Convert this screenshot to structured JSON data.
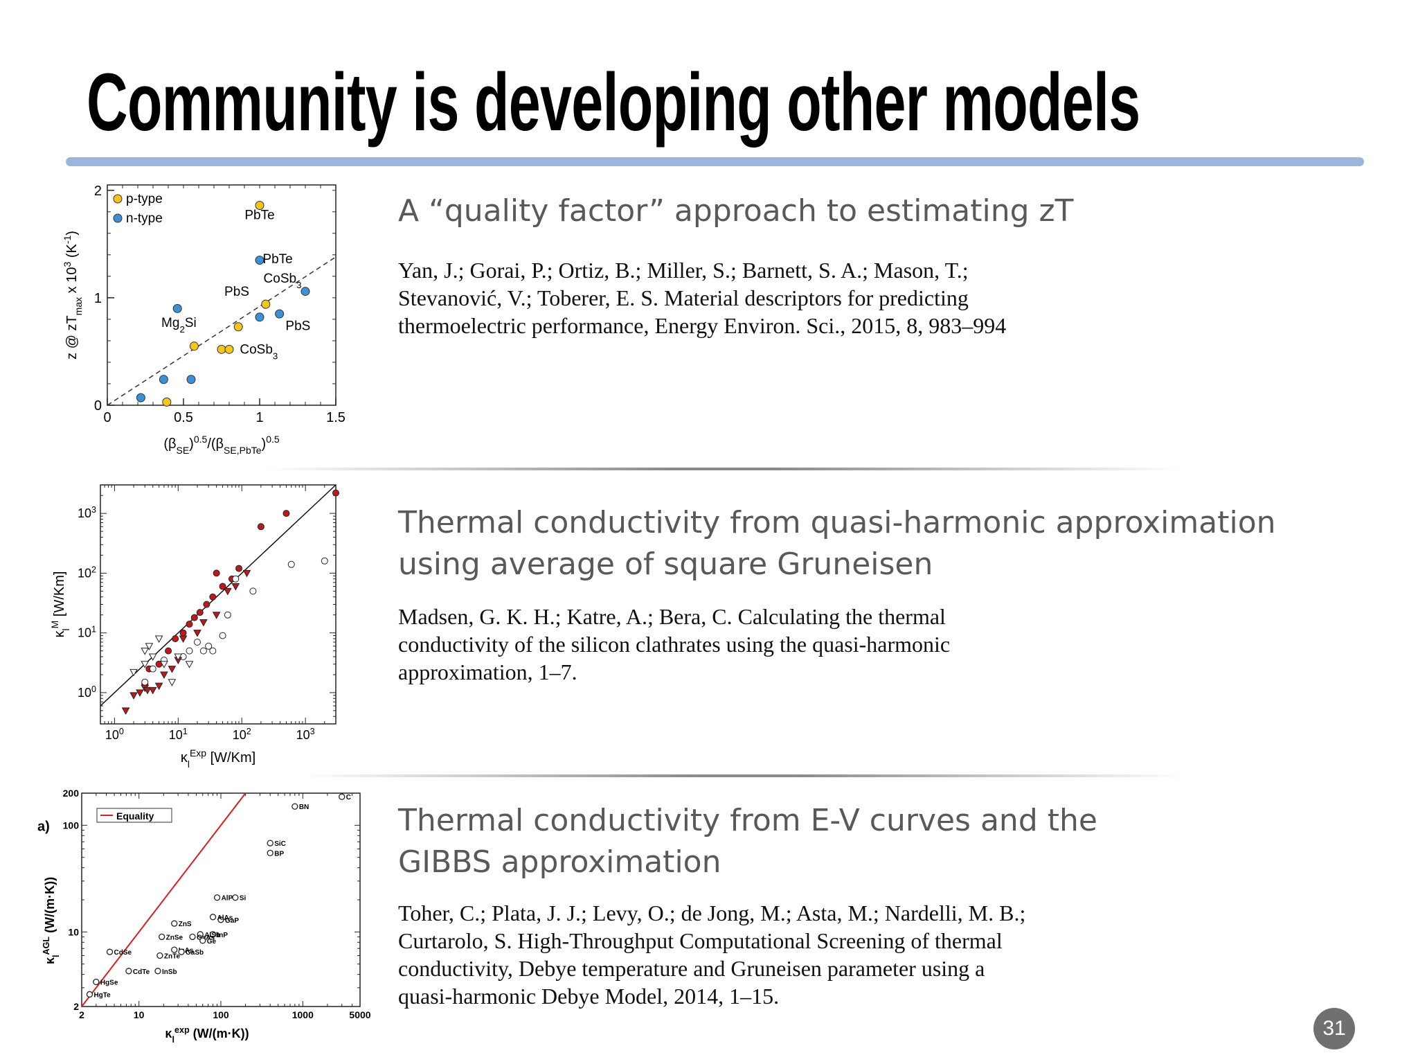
{
  "slide": {
    "title": "Community is developing other models",
    "page_number": "31"
  },
  "sections": [
    {
      "heading": "A “quality factor” approach to estimating zT",
      "citation": [
        "Yan, J.; Gorai, P.; Ortiz, B.; Miller, S.; Barnett, S. A.; Mason, T.;",
        "Stevanović, V.; Toberer, E. S. Material descriptors for predicting",
        "thermoelectric performance, Energy Environ. Sci., 2015, 8, 983–994"
      ]
    },
    {
      "heading": [
        "Thermal conductivity from quasi-harmonic approximation",
        "using average of square Gruneisen"
      ],
      "citation": [
        "Madsen, G. K. H.; Katre, A.; Bera, C. Calculating the thermal",
        "conductivity of the silicon clathrates using the quasi-harmonic",
        "approximation, 1–7."
      ]
    },
    {
      "heading": [
        "Thermal conductivity from E-V curves and the",
        "GIBBS approximation"
      ],
      "citation": [
        "Toher, C.; Plata, J. J.; Levy, O.; de Jong, M.; Asta, M.; Nardelli, M. B.;",
        "Curtarolo, S. High-Throughput Computational Screening of thermal",
        "conductivity, Debye temperature and Gruneisen parameter using a",
        "quasi-harmonic Debye Model, 2014, 1–15."
      ]
    }
  ],
  "chart_data": [
    {
      "type": "scatter",
      "xlabel": "(βSE)0.5/(βSE,PbTe)0.5",
      "ylabel": "z @ zTmax x 10^3 (K^-1)",
      "xlim": [
        0,
        1.5
      ],
      "ylim": [
        0,
        2.05
      ],
      "xticks": [
        "0",
        "0.5",
        "1",
        "1.5"
      ],
      "yticks": [
        "0",
        "1",
        "2"
      ],
      "legend": [
        "p-type",
        "n-type"
      ],
      "legend_position": "top-left",
      "fit_line": "dashed",
      "colors": {
        "p-type": "#f5c518",
        "n-type": "#3d8fd6"
      },
      "series": [
        {
          "name": "p-type",
          "points": [
            [
              0.39,
              0.03
            ],
            [
              0.57,
              0.55
            ],
            [
              0.75,
              0.52
            ],
            [
              0.8,
              0.52
            ],
            [
              0.86,
              0.73
            ],
            [
              1.0,
              1.86
            ],
            [
              1.04,
              0.94
            ]
          ]
        },
        {
          "name": "n-type",
          "points": [
            [
              0.22,
              0.07
            ],
            [
              0.37,
              0.24
            ],
            [
              0.46,
              0.9
            ],
            [
              0.55,
              0.24
            ],
            [
              1.0,
              1.35
            ],
            [
              1.0,
              0.82
            ],
            [
              1.13,
              0.85
            ],
            [
              1.3,
              1.06
            ]
          ]
        }
      ],
      "annotations": [
        "PbTe",
        "PbTe",
        "CoSb3",
        "PbS",
        "PbS",
        "Mg2Si",
        "CoSb3"
      ]
    },
    {
      "type": "scatter",
      "scale": "log-log",
      "xlabel": "κl^Exp [W/Km]",
      "ylabel": "κl^M [W/Km]",
      "xlim": [
        0.6,
        3000
      ],
      "ylim": [
        0.3,
        3000
      ],
      "xticks": [
        "10^0",
        "10^1",
        "10^2",
        "10^3"
      ],
      "yticks": [
        "10^0",
        "10^1",
        "10^2",
        "10^3"
      ],
      "reference_line": "y = x",
      "colors": {
        "filled": "#c0181b",
        "open": "#ffffff"
      },
      "series": [
        {
          "name": "",
          "marker": "filled-circle",
          "points": [
            [
              3,
              1.4
            ],
            [
              3.5,
              2.5
            ],
            [
              5,
              3
            ],
            [
              7,
              5
            ],
            [
              9,
              8
            ],
            [
              12,
              10
            ],
            [
              15,
              14
            ],
            [
              18,
              18
            ],
            [
              22,
              22
            ],
            [
              28,
              30
            ],
            [
              35,
              40
            ],
            [
              40,
              100
            ],
            [
              50,
              60
            ],
            [
              70,
              80
            ],
            [
              90,
              120
            ],
            [
              200,
              600
            ],
            [
              500,
              1000
            ],
            [
              3000,
              2200
            ]
          ]
        },
        {
          "name": "",
          "marker": "open-circle",
          "points": [
            [
              3,
              1.5
            ],
            [
              4,
              2.5
            ],
            [
              6,
              3.5
            ],
            [
              12,
              4
            ],
            [
              15,
              5
            ],
            [
              20,
              7
            ],
            [
              25,
              5
            ],
            [
              30,
              6
            ],
            [
              35,
              5
            ],
            [
              50,
              9
            ],
            [
              60,
              20
            ],
            [
              80,
              80
            ],
            [
              150,
              50
            ],
            [
              600,
              140
            ],
            [
              2000,
              160
            ]
          ]
        },
        {
          "name": "",
          "marker": "filled-triangle",
          "points": [
            [
              1.5,
              0.5
            ],
            [
              2,
              0.9
            ],
            [
              2.5,
              1.0
            ],
            [
              3,
              1.2
            ],
            [
              3.3,
              1.1
            ],
            [
              4,
              1.1
            ],
            [
              5,
              1.3
            ],
            [
              6,
              2.0
            ],
            [
              8,
              2.5
            ],
            [
              10,
              3.5
            ],
            [
              12,
              8
            ],
            [
              20,
              10
            ],
            [
              25,
              15
            ],
            [
              40,
              20
            ],
            [
              60,
              50
            ],
            [
              80,
              60
            ],
            [
              120,
              100
            ]
          ]
        },
        {
          "name": "",
          "marker": "open-triangle",
          "points": [
            [
              2,
              2.2
            ],
            [
              3,
              3
            ],
            [
              3,
              5
            ],
            [
              3.5,
              6
            ],
            [
              4,
              4
            ],
            [
              5,
              8
            ],
            [
              6,
              3
            ],
            [
              8,
              1.5
            ],
            [
              10,
              4
            ],
            [
              15,
              3
            ]
          ]
        }
      ]
    },
    {
      "type": "scatter",
      "scale": "log-log",
      "xlabel": "κl^exp (W/(m·K))",
      "ylabel": "κl^AGL (W/(m·K))",
      "panel_label": "a)",
      "xlim": [
        2,
        5000
      ],
      "ylim": [
        2,
        200
      ],
      "xticks": [
        "2",
        "10",
        "100",
        "1000",
        "5000"
      ],
      "yticks": [
        "2",
        "10",
        "100",
        "200"
      ],
      "legend": [
        "Equality"
      ],
      "legend_position": "top-left",
      "colors": {
        "Equality": "#dd1c1c"
      },
      "points": [
        {
          "label": "C",
          "x": 3000,
          "y": 185
        },
        {
          "label": "BN",
          "x": 800,
          "y": 150
        },
        {
          "label": "SiC",
          "x": 400,
          "y": 68
        },
        {
          "label": "BP",
          "x": 400,
          "y": 55
        },
        {
          "label": "Si",
          "x": 150,
          "y": 21
        },
        {
          "label": "AlP",
          "x": 90,
          "y": 21
        },
        {
          "label": "GaP",
          "x": 100,
          "y": 13
        },
        {
          "label": "AlAs",
          "x": 80,
          "y": 13.8
        },
        {
          "label": "ZnS",
          "x": 27,
          "y": 12
        },
        {
          "label": "InP",
          "x": 80,
          "y": 9.5
        },
        {
          "label": "AlSb",
          "x": 56,
          "y": 9.5
        },
        {
          "label": "GaAs",
          "x": 45,
          "y": 9
        },
        {
          "label": "Ge",
          "x": 60,
          "y": 8.3
        },
        {
          "label": "ZnSe",
          "x": 19,
          "y": 9
        },
        {
          "label": "InAs",
          "x": 27,
          "y": 6.8
        },
        {
          "label": "GaSb",
          "x": 33,
          "y": 6.5
        },
        {
          "label": "ZnTe",
          "x": 18,
          "y": 6
        },
        {
          "label": "CdSe",
          "x": 4.4,
          "y": 6.5
        },
        {
          "label": "CdTe",
          "x": 7.5,
          "y": 4.3
        },
        {
          "label": "InSb",
          "x": 17,
          "y": 4.3
        },
        {
          "label": "HgSe",
          "x": 3,
          "y": 3.4
        },
        {
          "label": "HgTe",
          "x": 2.5,
          "y": 2.6
        }
      ]
    }
  ]
}
